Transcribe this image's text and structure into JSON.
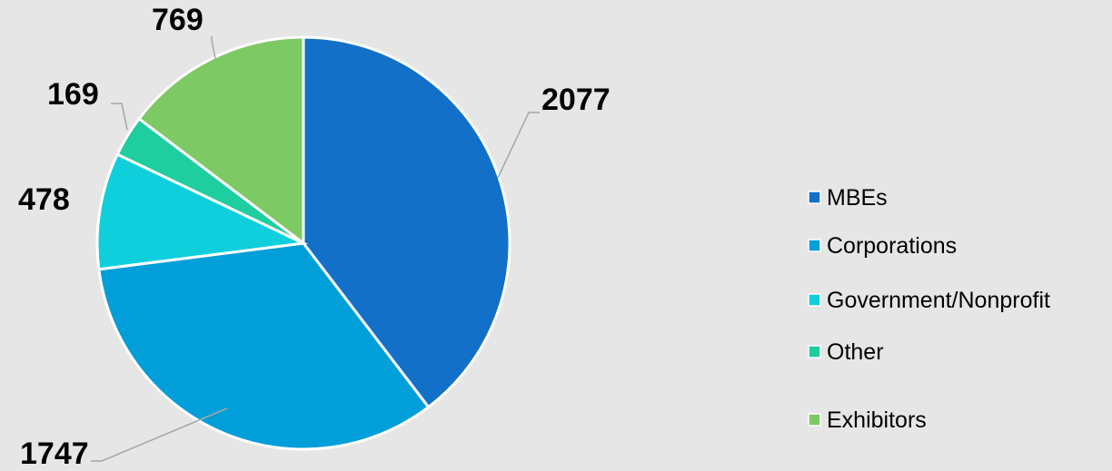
{
  "chart_data": {
    "type": "pie",
    "title": "",
    "categories": [
      "MBEs",
      "Corporations",
      "Government/Nonprofit",
      "Other",
      "Exhibitors"
    ],
    "values": [
      2077,
      1747,
      478,
      169,
      769
    ],
    "colors": [
      "#1270c8",
      "#009fd9",
      "#0fcfdc",
      "#1fce9e",
      "#7dc964"
    ],
    "legend_position": "right",
    "data_labels": [
      "2077",
      "1747",
      "478",
      "169",
      "769"
    ],
    "start_angle_deg": 0,
    "direction": "clockwise"
  },
  "colors": {
    "background": "#e6e6e6",
    "slice_border": "#ffffff",
    "leader_line": "#a6a6a6"
  }
}
